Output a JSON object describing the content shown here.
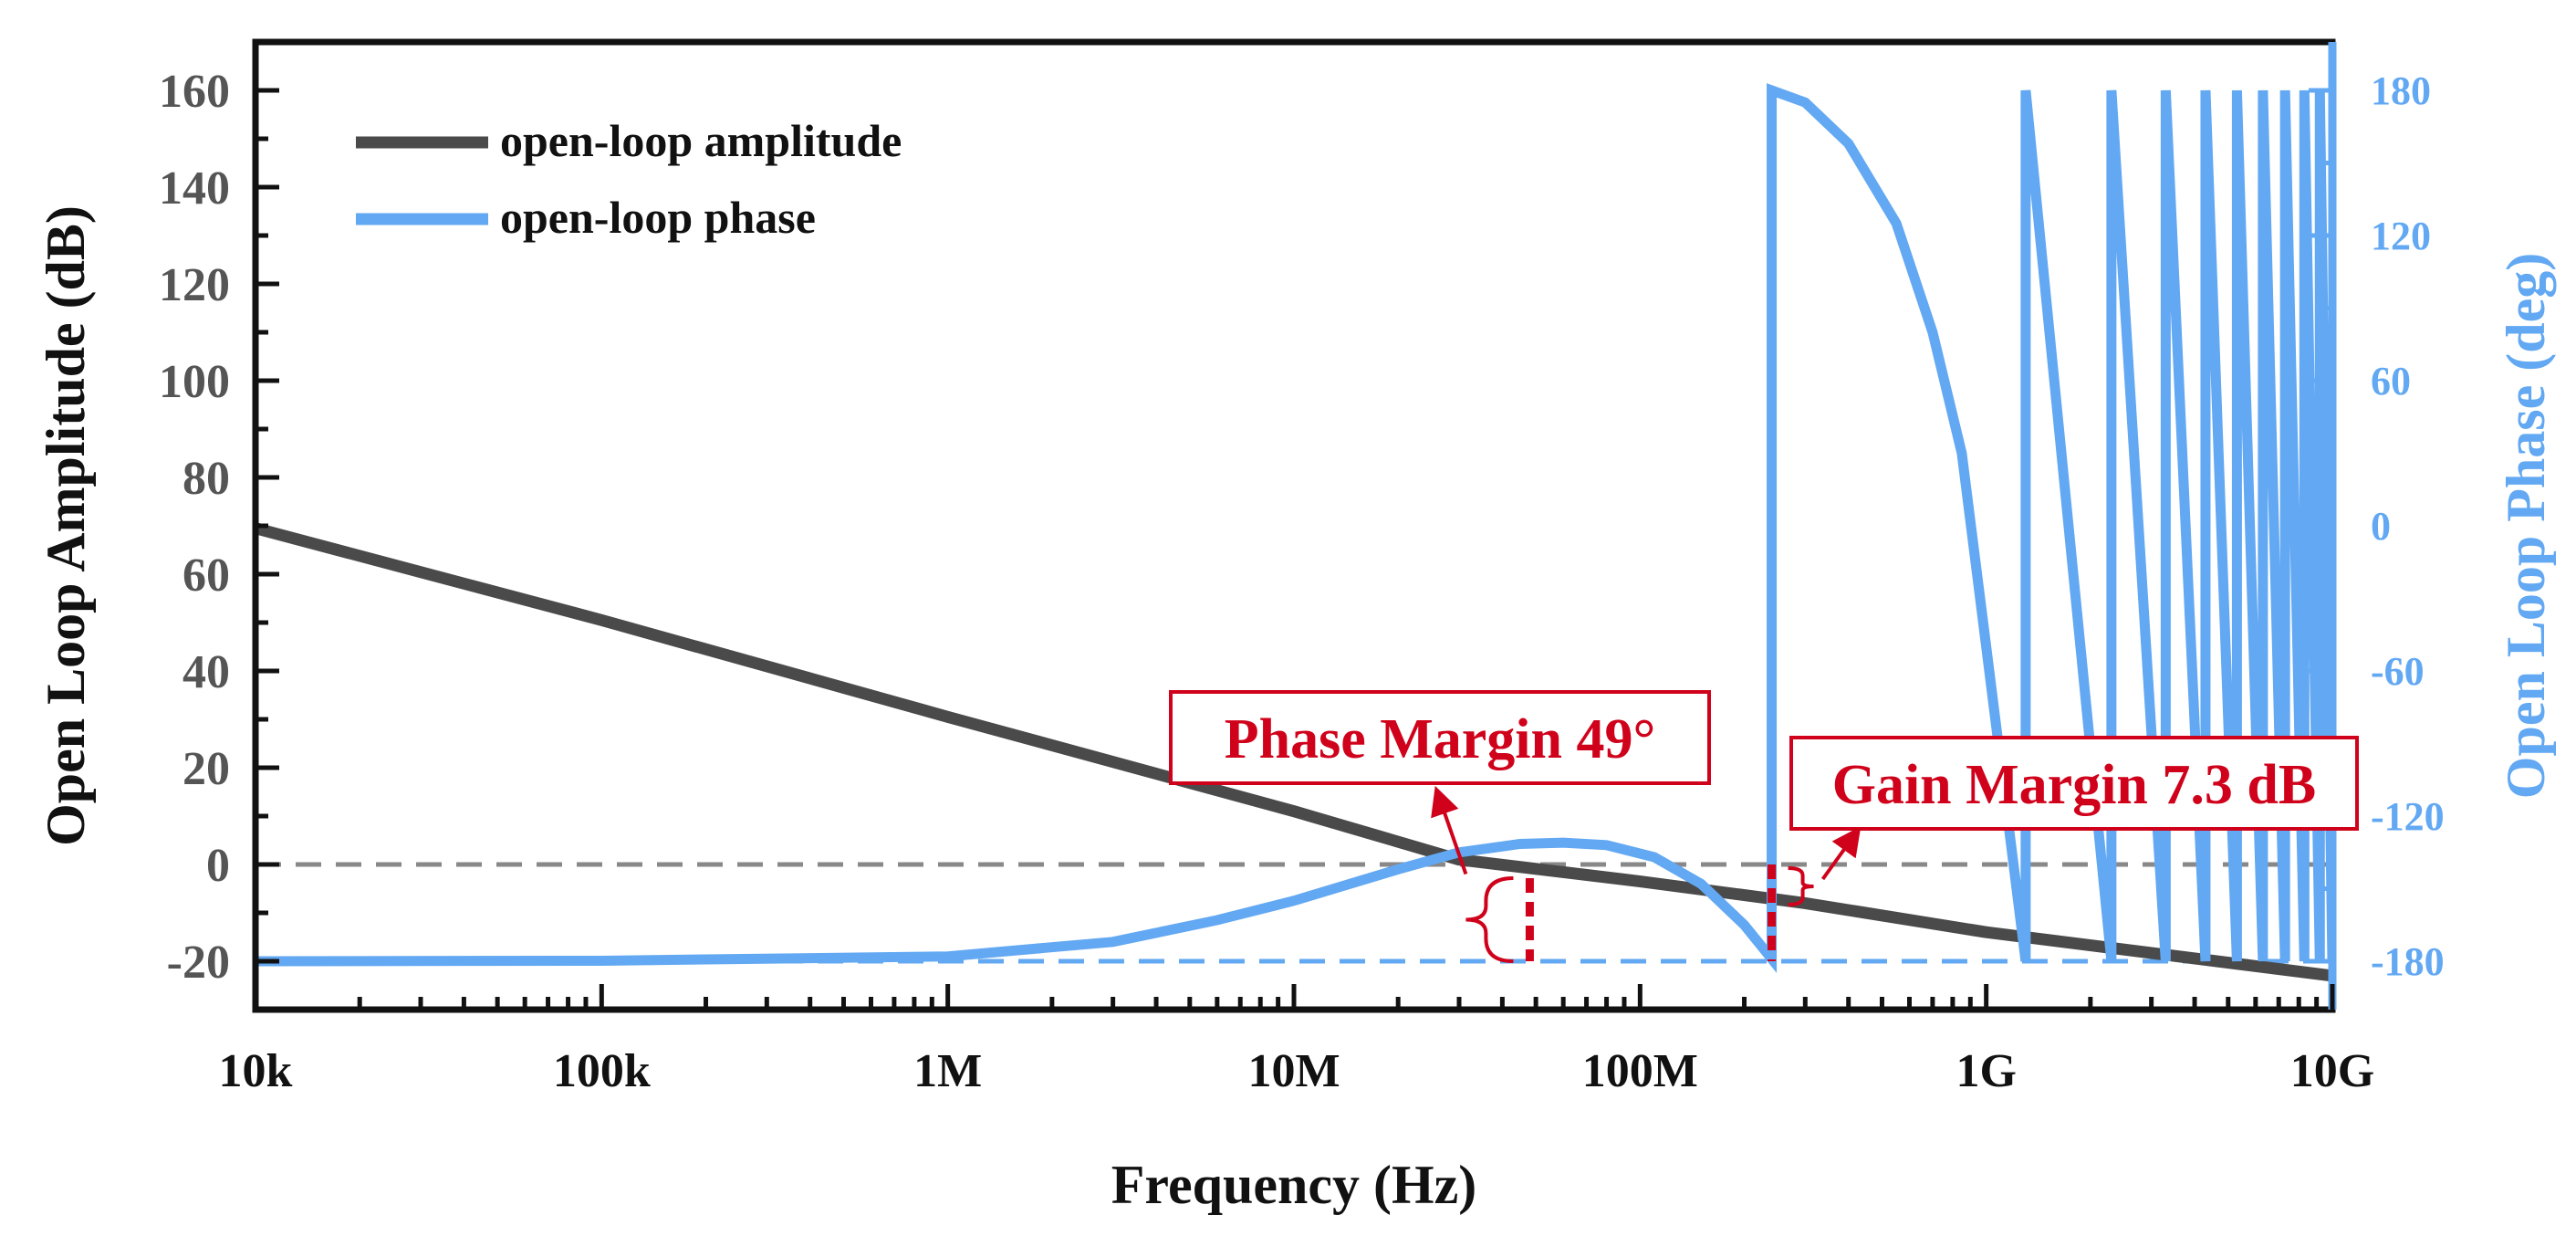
{
  "chart_data": {
    "type": "line",
    "x_scale": "log",
    "xlabel": "Frequency (Hz)",
    "ylabel_left": "Open Loop Amplitude (dB)",
    "ylabel_right": "Open Loop Phase (deg)",
    "xlim": [
      10000,
      10000000000
    ],
    "ylim_left": [
      -30,
      170
    ],
    "ylim_right": [
      -200,
      200
    ],
    "x_ticks": [
      {
        "value": 10000,
        "label": "10k"
      },
      {
        "value": 100000,
        "label": "100k"
      },
      {
        "value": 1000000,
        "label": "1M"
      },
      {
        "value": 10000000,
        "label": "10M"
      },
      {
        "value": 100000000,
        "label": "100M"
      },
      {
        "value": 1000000000,
        "label": "1G"
      },
      {
        "value": 10000000000,
        "label": "10G"
      }
    ],
    "y_left_ticks": [
      {
        "value": 160,
        "label": "160"
      },
      {
        "value": 140,
        "label": "140"
      },
      {
        "value": 120,
        "label": "120"
      },
      {
        "value": 100,
        "label": "100"
      },
      {
        "value": 80,
        "label": "80"
      },
      {
        "value": 60,
        "label": "60"
      },
      {
        "value": 40,
        "label": "40"
      },
      {
        "value": 20,
        "label": "20"
      },
      {
        "value": 0,
        "label": "0"
      },
      {
        "value": -20,
        "label": "-20"
      }
    ],
    "y_right_ticks": [
      {
        "value": 180,
        "label": "180"
      },
      {
        "value": 120,
        "label": "120"
      },
      {
        "value": 60,
        "label": "60"
      },
      {
        "value": 0,
        "label": "0"
      },
      {
        "value": -60,
        "label": "-60"
      },
      {
        "value": -120,
        "label": "-120"
      },
      {
        "value": -180,
        "label": "-180"
      }
    ],
    "series": [
      {
        "name": "open-loop amplitude",
        "axis": "left",
        "color": "#4a4a4a",
        "points": [
          [
            10000,
            69.5
          ],
          [
            100000,
            50.5
          ],
          [
            1000000,
            30.5
          ],
          [
            10000000,
            11
          ],
          [
            30000000,
            1
          ],
          [
            100000000,
            -3.5
          ],
          [
            300000000,
            -8
          ],
          [
            1000000000,
            -14
          ],
          [
            10000000000,
            -23
          ]
        ]
      },
      {
        "name": "open-loop phase",
        "axis": "right",
        "color": "#62a8f2",
        "points": [
          [
            10000,
            -180
          ],
          [
            100000,
            -179.8
          ],
          [
            1000000,
            -178
          ],
          [
            3000000,
            -172
          ],
          [
            6000000,
            -163
          ],
          [
            10000000,
            -155
          ],
          [
            20000000,
            -142
          ],
          [
            30000000,
            -135
          ],
          [
            45000000,
            -131.5
          ],
          [
            60000000,
            -131
          ],
          [
            80000000,
            -132
          ],
          [
            110000000,
            -137
          ],
          [
            150000000,
            -148
          ],
          [
            200000000,
            -165
          ],
          [
            240000000,
            -179
          ],
          [
            240000000,
            180
          ],
          [
            300000000,
            175
          ],
          [
            400000000,
            158
          ],
          [
            550000000,
            125
          ],
          [
            700000000,
            80
          ],
          [
            850000000,
            30
          ],
          [
            1000000000,
            -50
          ],
          [
            1300000000,
            -180
          ],
          [
            1300000000,
            180
          ],
          [
            2300000000,
            -180
          ],
          [
            2300000000,
            180
          ],
          [
            3300000000,
            -180
          ],
          [
            3300000000,
            180
          ],
          [
            4300000000,
            -180
          ],
          [
            4300000000,
            180
          ],
          [
            5300000000,
            -180
          ],
          [
            5300000000,
            180
          ],
          [
            6300000000,
            -180
          ],
          [
            6300000000,
            180
          ],
          [
            7300000000,
            -180
          ],
          [
            7300000000,
            180
          ],
          [
            8300000000,
            -180
          ],
          [
            8300000000,
            180
          ],
          [
            9200000000,
            -180
          ],
          [
            9200000000,
            180
          ],
          [
            10000000000,
            -180
          ]
        ]
      }
    ],
    "reference_lines": [
      {
        "axis": "left",
        "value": 0,
        "style": "dashed",
        "color": "#888888"
      },
      {
        "axis": "right",
        "value": -180,
        "style": "dashed",
        "color": "#62a8f2"
      }
    ],
    "annotations": [
      {
        "text": "Phase Margin 49°",
        "x": 48000000,
        "color": "#d0021b"
      },
      {
        "text": "Gain Margin 7.3 dB",
        "x": 240000000,
        "color": "#d0021b"
      }
    ],
    "legend_position": "top-left"
  }
}
